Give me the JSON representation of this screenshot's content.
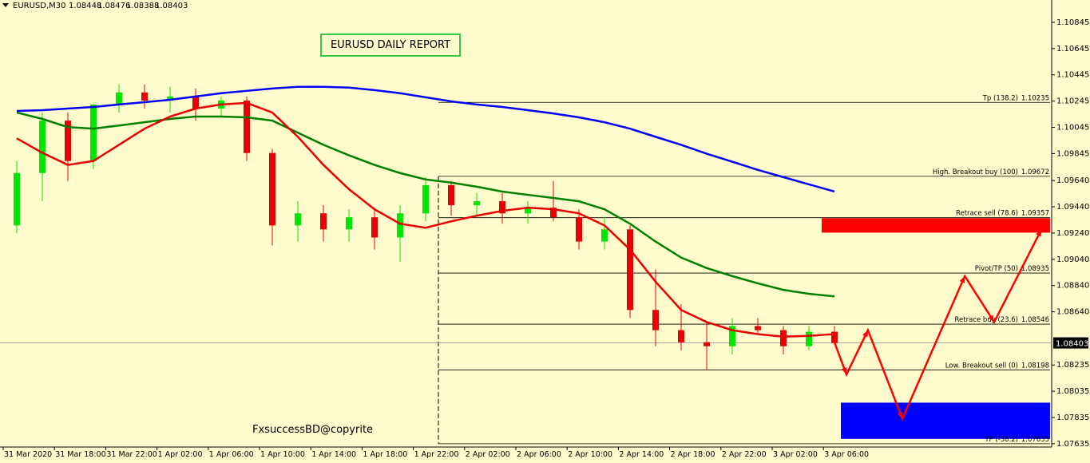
{
  "chart_data": {
    "type": "candlestick",
    "symbol": "EURUSD,M30",
    "quote": [
      1.08448,
      1.08476,
      1.08388,
      1.08403
    ],
    "title": "EURUSD DAILY REPORT",
    "watermark": "FxsuccessBD@copyrite",
    "ylim": [
      1.0761,
      1.11015
    ],
    "yticks": [
      {
        "value": 1.10845,
        "label": "1.10845"
      },
      {
        "value": 1.10645,
        "label": "1.10645"
      },
      {
        "value": 1.10445,
        "label": "1.10445"
      },
      {
        "value": 1.10245,
        "label": "1.10245"
      },
      {
        "value": 1.10045,
        "label": "1.10045"
      },
      {
        "value": 1.09845,
        "label": "1.09845"
      },
      {
        "value": 1.0964,
        "label": "1.09640"
      },
      {
        "value": 1.0944,
        "label": "1.09440"
      },
      {
        "value": 1.0924,
        "label": "1.09240"
      },
      {
        "value": 1.0904,
        "label": "1.09040"
      },
      {
        "value": 1.0884,
        "label": "1.08840"
      },
      {
        "value": 1.0864,
        "label": "1.08640"
      },
      {
        "value": 1.08235,
        "label": "1.08235"
      },
      {
        "value": 1.08035,
        "label": "1.08035"
      },
      {
        "value": 1.07835,
        "label": "1.07835"
      },
      {
        "value": 1.07635,
        "label": "1.07635"
      }
    ],
    "time_labels": [
      "31 Mar 2020",
      "31 Mar 18:00",
      "31 Mar 22:00",
      "1 Apr 02:00",
      "1 Apr 06:00",
      "1 Apr 10:00",
      "1 Apr 14:00",
      "1 Apr 18:00",
      "1 Apr 22:00",
      "2 Apr 02:00",
      "2 Apr 06:00",
      "2 Apr 10:00",
      "2 Apr 14:00",
      "2 Apr 18:00",
      "2 Apr 22:00",
      "3 Apr 02:00",
      "3 Apr 06:00"
    ],
    "up_color": "#00e600",
    "down_color": "#e60000",
    "candles": [
      [
        1.09298,
        1.09789,
        1.09237,
        1.09697
      ],
      [
        1.09697,
        1.10158,
        1.09482,
        1.10096
      ],
      [
        1.10096,
        1.10158,
        1.09636,
        1.09789
      ],
      [
        1.09789,
        1.10219,
        1.09728,
        1.10219
      ],
      [
        1.10219,
        1.10372,
        1.10158,
        1.10311
      ],
      [
        1.10311,
        1.10372,
        1.10188,
        1.10249
      ],
      [
        1.10249,
        1.10354,
        1.10158,
        1.1028
      ],
      [
        1.1028,
        1.10341,
        1.10096,
        1.10188
      ],
      [
        1.10188,
        1.1028,
        1.10127,
        1.10249
      ],
      [
        1.10249,
        1.1028,
        1.09789,
        1.0985
      ],
      [
        1.0985,
        1.09881,
        1.09145,
        1.09298
      ],
      [
        1.09298,
        1.09482,
        1.09175,
        1.0939
      ],
      [
        1.0939,
        1.09452,
        1.09175,
        1.09268
      ],
      [
        1.09268,
        1.09421,
        1.09175,
        1.0936
      ],
      [
        1.0936,
        1.09421,
        1.09114,
        1.09206
      ],
      [
        1.09206,
        1.09452,
        1.09022,
        1.0939
      ],
      [
        1.0939,
        1.09666,
        1.09329,
        1.09605
      ],
      [
        1.09605,
        1.09636,
        1.09372,
        1.09452
      ],
      [
        1.09452,
        1.09544,
        1.09372,
        1.09482
      ],
      [
        1.09482,
        1.09544,
        1.09311,
        1.0939
      ],
      [
        1.0939,
        1.09482,
        1.09311,
        1.09433
      ],
      [
        1.09433,
        1.09636,
        1.09329,
        1.0936
      ],
      [
        1.0936,
        1.09421,
        1.09114,
        1.09175
      ],
      [
        1.09175,
        1.0936,
        1.09114,
        1.09268
      ],
      [
        1.09268,
        1.09298,
        1.08593,
        1.08654
      ],
      [
        1.08654,
        1.08961,
        1.08378,
        1.085
      ],
      [
        1.085,
        1.08697,
        1.08347,
        1.08408
      ],
      [
        1.08408,
        1.08562,
        1.08193,
        1.08378
      ],
      [
        1.08378,
        1.08592,
        1.08316,
        1.08531
      ],
      [
        1.08531,
        1.08592,
        1.0847,
        1.085
      ],
      [
        1.085,
        1.08531,
        1.08316,
        1.08378
      ],
      [
        1.08378,
        1.08531,
        1.08347,
        1.08488
      ],
      [
        1.08488,
        1.08531,
        1.08388,
        1.08403
      ]
    ],
    "moving_averages": [
      {
        "color": "#0000ff",
        "values": [
          1.1017,
          1.10176,
          1.10188,
          1.102,
          1.10219,
          1.10237,
          1.10255,
          1.1028,
          1.10305,
          1.10323,
          1.10341,
          1.10354,
          1.10354,
          1.10348,
          1.10329,
          1.10305,
          1.10274,
          1.10243,
          1.10219,
          1.102,
          1.10176,
          1.10151,
          1.10121,
          1.10084,
          1.10035,
          1.09973,
          1.09912,
          1.09844,
          1.09783,
          1.09721,
          1.09666,
          1.09611,
          1.09556
        ]
      },
      {
        "color": "#008000",
        "values": [
          1.10158,
          1.10109,
          1.10047,
          1.10035,
          1.10059,
          1.10084,
          1.10109,
          1.10127,
          1.10127,
          1.10121,
          1.10096,
          1.10004,
          1.09912,
          1.09832,
          1.09759,
          1.09697,
          1.09648,
          1.09624,
          1.09593,
          1.09556,
          1.09531,
          1.09507,
          1.09482,
          1.09421,
          1.09311,
          1.09175,
          1.09053,
          1.08973,
          1.08912,
          1.08857,
          1.08807,
          1.08777,
          1.08758
        ]
      },
      {
        "color": "#e60000",
        "values": [
          1.09961,
          1.09851,
          1.09759,
          1.09789,
          1.09912,
          1.10035,
          1.10127,
          1.10188,
          1.10219,
          1.10231,
          1.10158,
          1.09973,
          1.09759,
          1.09574,
          1.09421,
          1.09311,
          1.0928,
          1.09329,
          1.09372,
          1.09409,
          1.09433,
          1.09421,
          1.0939,
          1.09298,
          1.09114,
          1.08869,
          1.08654,
          1.08562,
          1.085,
          1.0847,
          1.08451,
          1.08457,
          1.0847
        ]
      }
    ],
    "levels": [
      {
        "label": "Tp (138.2)",
        "value": 1.10235
      },
      {
        "label": "High. Breakout buy (100)",
        "value": 1.09672
      },
      {
        "label": "Retrace sell (78.6)",
        "value": 1.09357
      },
      {
        "label": "Pivot/TP (50)",
        "value": 1.08935
      },
      {
        "label": "Retrace buy (23.6)",
        "value": 1.08546
      },
      {
        "label": "Low. Breakout sell (0)",
        "value": 1.08198
      },
      {
        "label": "TP (-38.2)",
        "value": 1.07635
      }
    ],
    "zones": [
      {
        "color": "#ff0000",
        "top": 1.09353,
        "bottom": 1.09243
      },
      {
        "color": "#0000ff",
        "top": 1.07948,
        "bottom": 1.07672
      }
    ],
    "projection": {
      "color": "#ff0000",
      "x": [
        32,
        32.47,
        33.31,
        34.66,
        37.1,
        38.25,
        40.1
      ],
      "values": [
        1.08408,
        1.08163,
        1.085,
        1.07825,
        1.08912,
        1.08562,
        1.09267
      ]
    }
  }
}
